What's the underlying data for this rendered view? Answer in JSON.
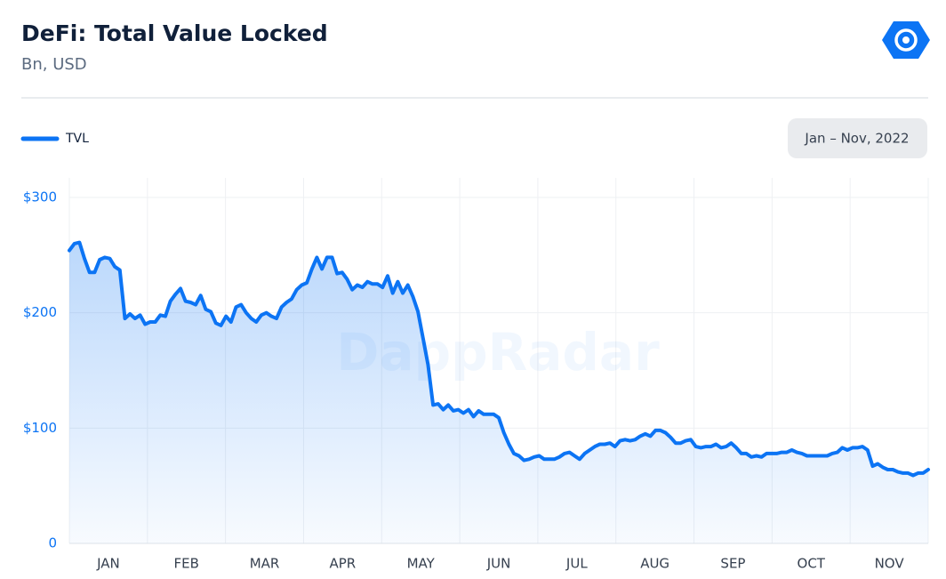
{
  "chart_data": {
    "type": "area-line",
    "title": "DeFi: Total Value Locked",
    "subtitle": "Bn, USD",
    "date_range": "Jan – Nov, 2022",
    "watermark": "DappRadar",
    "months": [
      "JAN",
      "FEB",
      "MAR",
      "APR",
      "MAY",
      "JUN",
      "JUL",
      "AUG",
      "SEP",
      "OCT",
      "NOV"
    ],
    "ylim": [
      0,
      300
    ],
    "yticks": [
      {
        "value": 0,
        "label": "0"
      },
      {
        "value": 100,
        "label": "$100"
      },
      {
        "value": 200,
        "label": "$200"
      },
      {
        "value": 300,
        "label": "$300"
      }
    ],
    "grid": true,
    "series": [
      {
        "name": "TVL",
        "color": "#0c74f4",
        "values": [
          254,
          260,
          261,
          247,
          235,
          235,
          246,
          248,
          247,
          240,
          237,
          195,
          199,
          195,
          198,
          190,
          192,
          192,
          198,
          197,
          210,
          216,
          221,
          210,
          209,
          207,
          215,
          203,
          201,
          191,
          189,
          197,
          192,
          205,
          207,
          200,
          195,
          192,
          198,
          200,
          197,
          195,
          205,
          209,
          212,
          220,
          224,
          226,
          238,
          248,
          238,
          248,
          248,
          234,
          235,
          229,
          220,
          224,
          222,
          227,
          225,
          225,
          222,
          232,
          217,
          227,
          217,
          224,
          214,
          201,
          178,
          155,
          120,
          121,
          116,
          120,
          115,
          116,
          113,
          116,
          110,
          115,
          112,
          112,
          112,
          109,
          96,
          86,
          78,
          76,
          72,
          73,
          75,
          76,
          73,
          73,
          73,
          75,
          78,
          79,
          76,
          73,
          78,
          81,
          84,
          86,
          86,
          87,
          84,
          89,
          90,
          89,
          90,
          93,
          95,
          93,
          98,
          98,
          96,
          92,
          87,
          87,
          89,
          90,
          84,
          83,
          84,
          84,
          86,
          83,
          84,
          87,
          83,
          78,
          78,
          75,
          76,
          75,
          78,
          78,
          78,
          79,
          79,
          81,
          79,
          78,
          76,
          76,
          76,
          76,
          76,
          78,
          79,
          83,
          81,
          83,
          83,
          84,
          81,
          67,
          69,
          66,
          64,
          64,
          62,
          61,
          61,
          59,
          61,
          61,
          64
        ]
      }
    ]
  }
}
